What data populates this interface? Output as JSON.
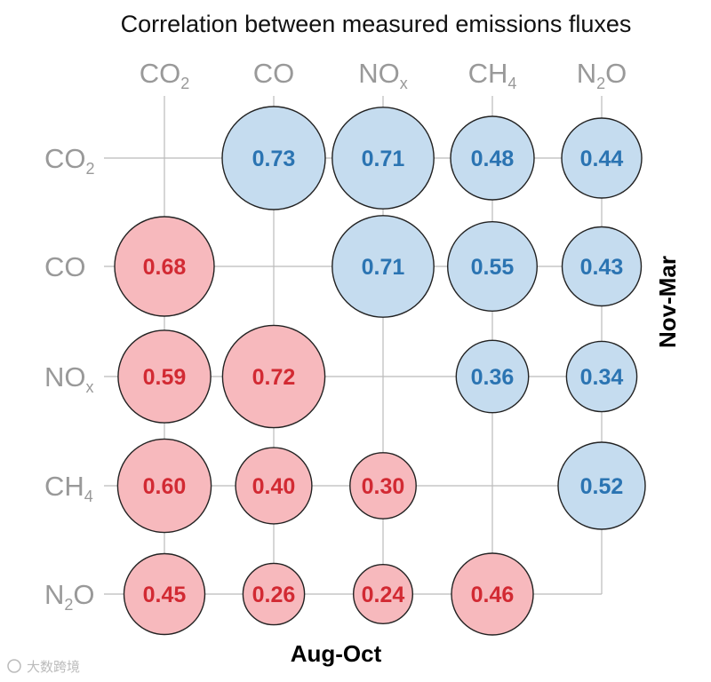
{
  "chart_data": {
    "type": "bubble-correlation-matrix",
    "title": "Correlation between measured emissions fluxes",
    "variables": [
      {
        "id": "CO2",
        "base": "CO",
        "sub": "2",
        "post": ""
      },
      {
        "id": "CO",
        "base": "CO",
        "sub": "",
        "post": ""
      },
      {
        "id": "NOx",
        "base": "NO",
        "sub": "x",
        "post": ""
      },
      {
        "id": "CH4",
        "base": "CH",
        "sub": "4",
        "post": ""
      },
      {
        "id": "N2O",
        "base": "N",
        "sub": "2",
        "post": "O"
      }
    ],
    "upper_triangle_label": "Nov-Mar",
    "lower_triangle_label": "Aug-Oct",
    "colors": {
      "nov_mar_fill": "#c5dcef",
      "nov_mar_text": "#2b74b2",
      "aug_oct_fill": "#f7b9bd",
      "aug_oct_text": "#d22a33",
      "outline": "#222222",
      "grid": "#bbbbbb",
      "axis_text": "#999999"
    },
    "cells": [
      {
        "row": "CO2",
        "col": "CO",
        "value": 0.73,
        "period": "Nov-Mar",
        "text": "0.73"
      },
      {
        "row": "CO2",
        "col": "NOx",
        "value": 0.71,
        "period": "Nov-Mar",
        "text": "0.71"
      },
      {
        "row": "CO2",
        "col": "CH4",
        "value": 0.48,
        "period": "Nov-Mar",
        "text": "0.48"
      },
      {
        "row": "CO2",
        "col": "N2O",
        "value": 0.44,
        "period": "Nov-Mar",
        "text": "0.44"
      },
      {
        "row": "CO",
        "col": "NOx",
        "value": 0.71,
        "period": "Nov-Mar",
        "text": "0.71"
      },
      {
        "row": "CO",
        "col": "CH4",
        "value": 0.55,
        "period": "Nov-Mar",
        "text": "0.55"
      },
      {
        "row": "CO",
        "col": "N2O",
        "value": 0.43,
        "period": "Nov-Mar",
        "text": "0.43"
      },
      {
        "row": "NOx",
        "col": "CH4",
        "value": 0.36,
        "period": "Nov-Mar",
        "text": "0.36"
      },
      {
        "row": "NOx",
        "col": "N2O",
        "value": 0.34,
        "period": "Nov-Mar",
        "text": "0.34"
      },
      {
        "row": "CH4",
        "col": "N2O",
        "value": 0.52,
        "period": "Nov-Mar",
        "text": "0.52"
      },
      {
        "row": "CO",
        "col": "CO2",
        "value": 0.68,
        "period": "Aug-Oct",
        "text": "0.68"
      },
      {
        "row": "NOx",
        "col": "CO2",
        "value": 0.59,
        "period": "Aug-Oct",
        "text": "0.59"
      },
      {
        "row": "NOx",
        "col": "CO",
        "value": 0.72,
        "period": "Aug-Oct",
        "text": "0.72"
      },
      {
        "row": "CH4",
        "col": "CO2",
        "value": 0.6,
        "period": "Aug-Oct",
        "text": "0.60"
      },
      {
        "row": "CH4",
        "col": "CO",
        "value": 0.4,
        "period": "Aug-Oct",
        "text": "0.40"
      },
      {
        "row": "CH4",
        "col": "NOx",
        "value": 0.3,
        "period": "Aug-Oct",
        "text": "0.30"
      },
      {
        "row": "N2O",
        "col": "CO2",
        "value": 0.45,
        "period": "Aug-Oct",
        "text": "0.45"
      },
      {
        "row": "N2O",
        "col": "CO",
        "value": 0.26,
        "period": "Aug-Oct",
        "text": "0.26"
      },
      {
        "row": "N2O",
        "col": "NOx",
        "value": 0.24,
        "period": "Aug-Oct",
        "text": "0.24"
      },
      {
        "row": "N2O",
        "col": "CH4",
        "value": 0.46,
        "period": "Aug-Oct",
        "text": "0.46"
      }
    ]
  },
  "watermark": "大数跨境"
}
